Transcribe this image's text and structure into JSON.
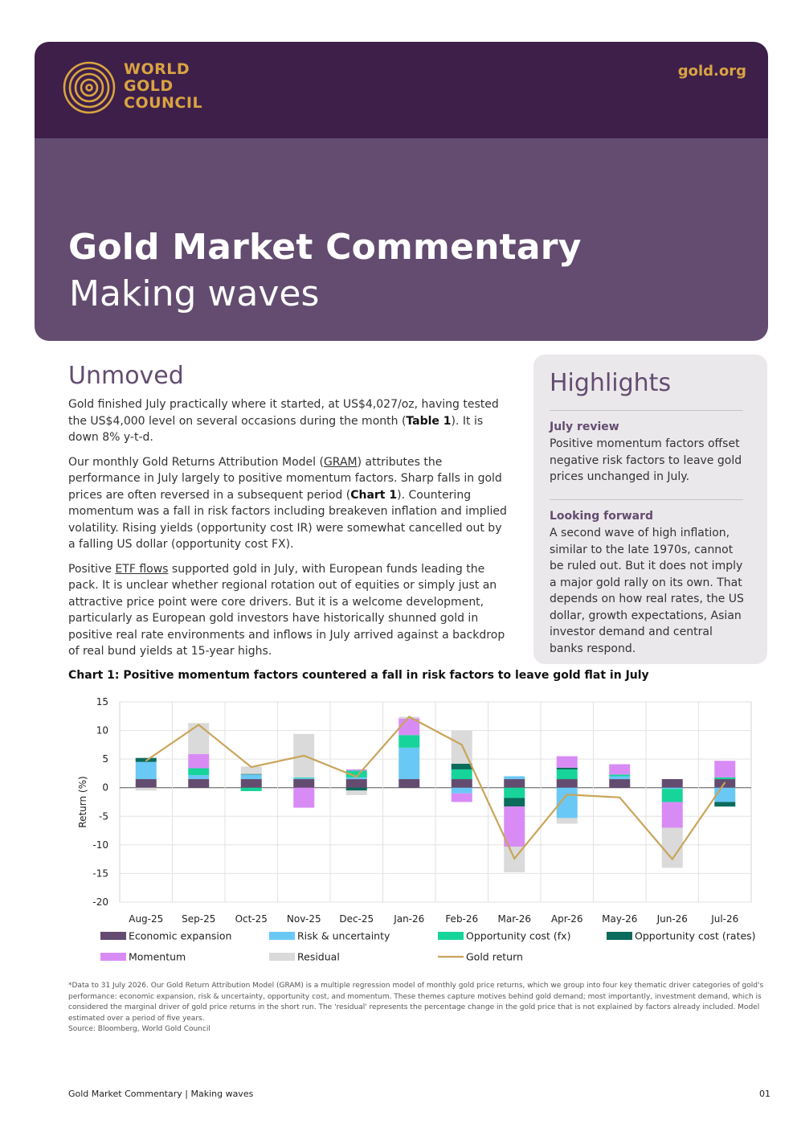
{
  "header": {
    "logo_lines": [
      "WORLD",
      "GOLD",
      "COUNCIL"
    ],
    "website": "gold.org",
    "title": "Gold Market Commentary",
    "subtitle": "Making waves",
    "brand_colors": {
      "dark_purple": "#3d1f4a",
      "purple": "#634c70",
      "gold": "#d9a441"
    }
  },
  "main": {
    "heading": "Unmoved",
    "p1": {
      "a": "Gold finished July practically where it started, at US$4,027/oz, having tested the US$4,000 level on several occasions during the month (",
      "ref": "Table 1",
      "b": "). It is down 8% y-t-d."
    },
    "p2": {
      "a": "Our monthly Gold Returns Attribution Model (",
      "link": "GRAM",
      "b": ") attributes the performance in July largely to positive momentum factors. Sharp falls in gold prices are often reversed in a subsequent period (",
      "ref": "Chart 1",
      "c": "). Countering momentum was a fall in risk factors including breakeven inflation and implied volatility. Rising yields (opportunity cost IR) were somewhat cancelled out by a falling US dollar (opportunity cost FX)."
    },
    "p3": {
      "a": "Positive ",
      "link": "ETF flows",
      "b": " supported gold in July, with European funds leading the pack. It is unclear whether regional rotation out of equities or simply just an attractive price point were core drivers. But it is a welcome development, particularly as European gold investors have historically shunned gold in positive real rate environments and inflows in July arrived against a backdrop of real bund yields at 15-year highs."
    }
  },
  "highlights": {
    "title": "Highlights",
    "items": [
      {
        "heading": "July review",
        "text": "Positive momentum factors offset negative risk factors to leave gold prices unchanged in July."
      },
      {
        "heading": "Looking forward",
        "text": "A second wave of high inflation, similar to the late 1970s, cannot be ruled out. But it does not imply a major gold rally on its own. That depends on how real rates, the US dollar, growth expectations, Asian investor demand and central banks respond."
      }
    ]
  },
  "chart_data": {
    "type": "bar",
    "stacked": true,
    "title": "Chart 1: Positive momentum factors countered a fall in risk factors to leave gold flat in July",
    "xlabel": "",
    "ylabel": "Return (%)",
    "ylim": [
      -20,
      15
    ],
    "yticks": [
      15,
      10,
      5,
      0,
      -5,
      -10,
      -15,
      -20
    ],
    "grid": true,
    "legend": "bottom",
    "categories": [
      "Aug-25",
      "Sep-25",
      "Oct-25",
      "Nov-25",
      "Dec-25",
      "Jan-26",
      "Feb-26",
      "Mar-26",
      "Apr-26",
      "May-26",
      "Jun-26",
      "Jul-26"
    ],
    "series": [
      {
        "name": "Economic expansion",
        "color": "#634c70",
        "values": [
          1.5,
          1.5,
          1.5,
          1.5,
          1.5,
          1.5,
          1.5,
          1.5,
          1.5,
          1.5,
          1.5,
          1.5
        ]
      },
      {
        "name": "Risk & uncertainty",
        "color": "#6ac8f5",
        "values": [
          3.0,
          0.7,
          0.8,
          0.2,
          0.3,
          5.5,
          -1.0,
          0.5,
          -5.3,
          0.5,
          -0.2,
          -2.5
        ]
      },
      {
        "name": "Opportunity cost (fx)",
        "color": "#17d49a",
        "values": [
          0.0,
          1.2,
          -0.6,
          0.1,
          1.2,
          2.2,
          1.7,
          -1.8,
          1.7,
          0.3,
          -2.3,
          0.3
        ]
      },
      {
        "name": "Opportunity cost (rates)",
        "color": "#0b6b5c",
        "values": [
          0.7,
          0.0,
          0.1,
          0.0,
          -0.5,
          0.0,
          1.0,
          -1.5,
          0.3,
          0.0,
          0.0,
          -0.8
        ]
      },
      {
        "name": "Momentum",
        "color": "#d98bf5",
        "values": [
          0.0,
          2.5,
          0.0,
          -3.5,
          0.2,
          2.9,
          -1.5,
          -7.0,
          2.0,
          1.8,
          -4.5,
          2.9
        ]
      },
      {
        "name": "Residual",
        "color": "#dadada",
        "values": [
          -0.5,
          5.4,
          1.3,
          7.6,
          -0.8,
          0.3,
          5.8,
          -4.5,
          -1.0,
          0.0,
          -7.0,
          0.0
        ]
      }
    ],
    "line": {
      "name": "Gold return",
      "color": "#c9a55a",
      "values": [
        4.7,
        11.0,
        3.6,
        5.6,
        1.9,
        12.4,
        7.5,
        -12.4,
        -1.2,
        -1.7,
        -12.5,
        0.9
      ]
    }
  },
  "footnote": {
    "note": "*Data to 31 July 2026. Our Gold Return Attribution Model (GRAM) is a multiple regression model of monthly gold price returns, which we group into four key thematic driver categories of gold's performance: economic expansion, risk & uncertainty, opportunity cost, and momentum. These themes capture motives behind gold demand; most importantly, investment demand, which is considered the marginal driver of gold price returns in the short run. The 'residual' represents the percentage change in the gold price that is not explained by factors already included. Model estimated over a period of five years.",
    "source": "Source: Bloomberg, World Gold Council"
  },
  "footer": {
    "left": "Gold Market Commentary | Making waves",
    "page": "01"
  }
}
